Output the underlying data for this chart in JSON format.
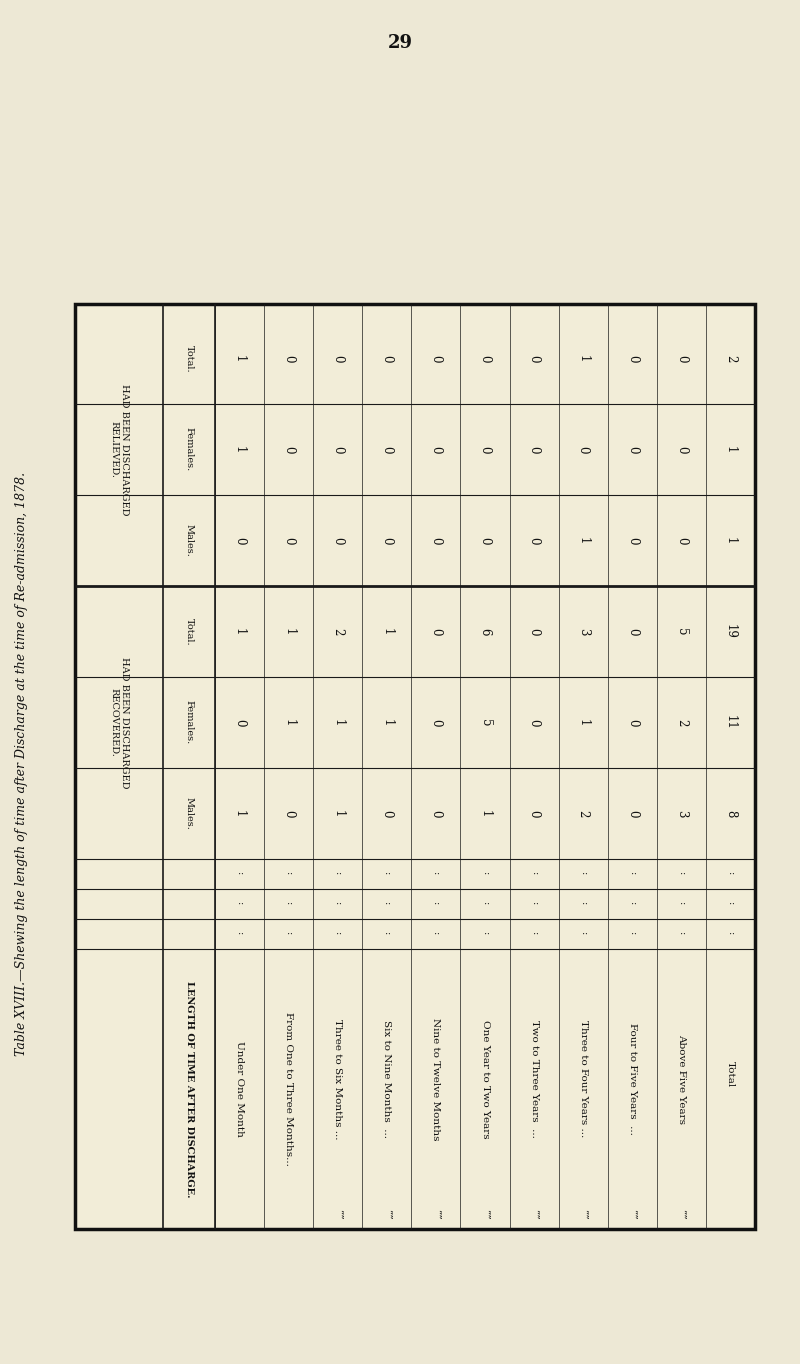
{
  "page_number": "29",
  "side_title": "Table XVIII.—Shewing the length of time after Discharge at the time of Re-admission, 1878.",
  "bg_color": "#ede8d5",
  "table_bg": "#f2edd8",
  "col_group_1": "HAD BEEN DISCHARGED\nRECOVERED.",
  "col_group_2": "HAD BEEN DISCHARGED\nRELIEVED.",
  "sub_headers": [
    "Males.",
    "Females.",
    "Total.",
    "Males.",
    "Females.",
    "Total."
  ],
  "length_header": "LENGTH OF TIME AFTER DISCHARGE.",
  "recovered_males": [
    1,
    0,
    1,
    0,
    0,
    1,
    0,
    2,
    0,
    3,
    8
  ],
  "recovered_females": [
    0,
    1,
    1,
    1,
    0,
    5,
    0,
    1,
    0,
    2,
    11
  ],
  "recovered_total": [
    1,
    1,
    2,
    1,
    0,
    6,
    0,
    3,
    0,
    5,
    19
  ],
  "relieved_males": [
    0,
    0,
    0,
    0,
    0,
    0,
    0,
    1,
    0,
    0,
    1
  ],
  "relieved_females": [
    1,
    0,
    0,
    0,
    0,
    0,
    0,
    0,
    0,
    0,
    1
  ],
  "relieved_total": [
    1,
    0,
    0,
    0,
    0,
    0,
    0,
    1,
    0,
    0,
    2
  ],
  "row_labels": [
    "Under One Month",
    "From One to Three Months...",
    "Three to Six Months ...",
    "Six to Nine Months  ...",
    "Nine to Twelve Months",
    "One Year to Two Years",
    "Two to Three Years  ...",
    "Three to Four Years ...",
    "Four to Five Years  ...",
    "Above Five Years",
    "Total"
  ],
  "row_prefixes": [
    "",
    "From ",
    "””  ",
    "””  ",
    "””  ",
    "””  ",
    "””  ",
    "””  ",
    "””  ",
    "",
    ""
  ],
  "row_dots1": [
    "...",
    "...",
    "...",
    "...",
    "",
    "",
    "...",
    "...",
    "...",
    "...",
    "..."
  ],
  "row_dots2": [
    "",
    "...",
    "...",
    "...",
    "",
    "",
    "...",
    "...",
    "",
    "...",
    "..."
  ],
  "row_dots3": [
    "",
    "...",
    "...",
    "...",
    "",
    "",
    "...",
    "...",
    "",
    "...",
    "..."
  ]
}
